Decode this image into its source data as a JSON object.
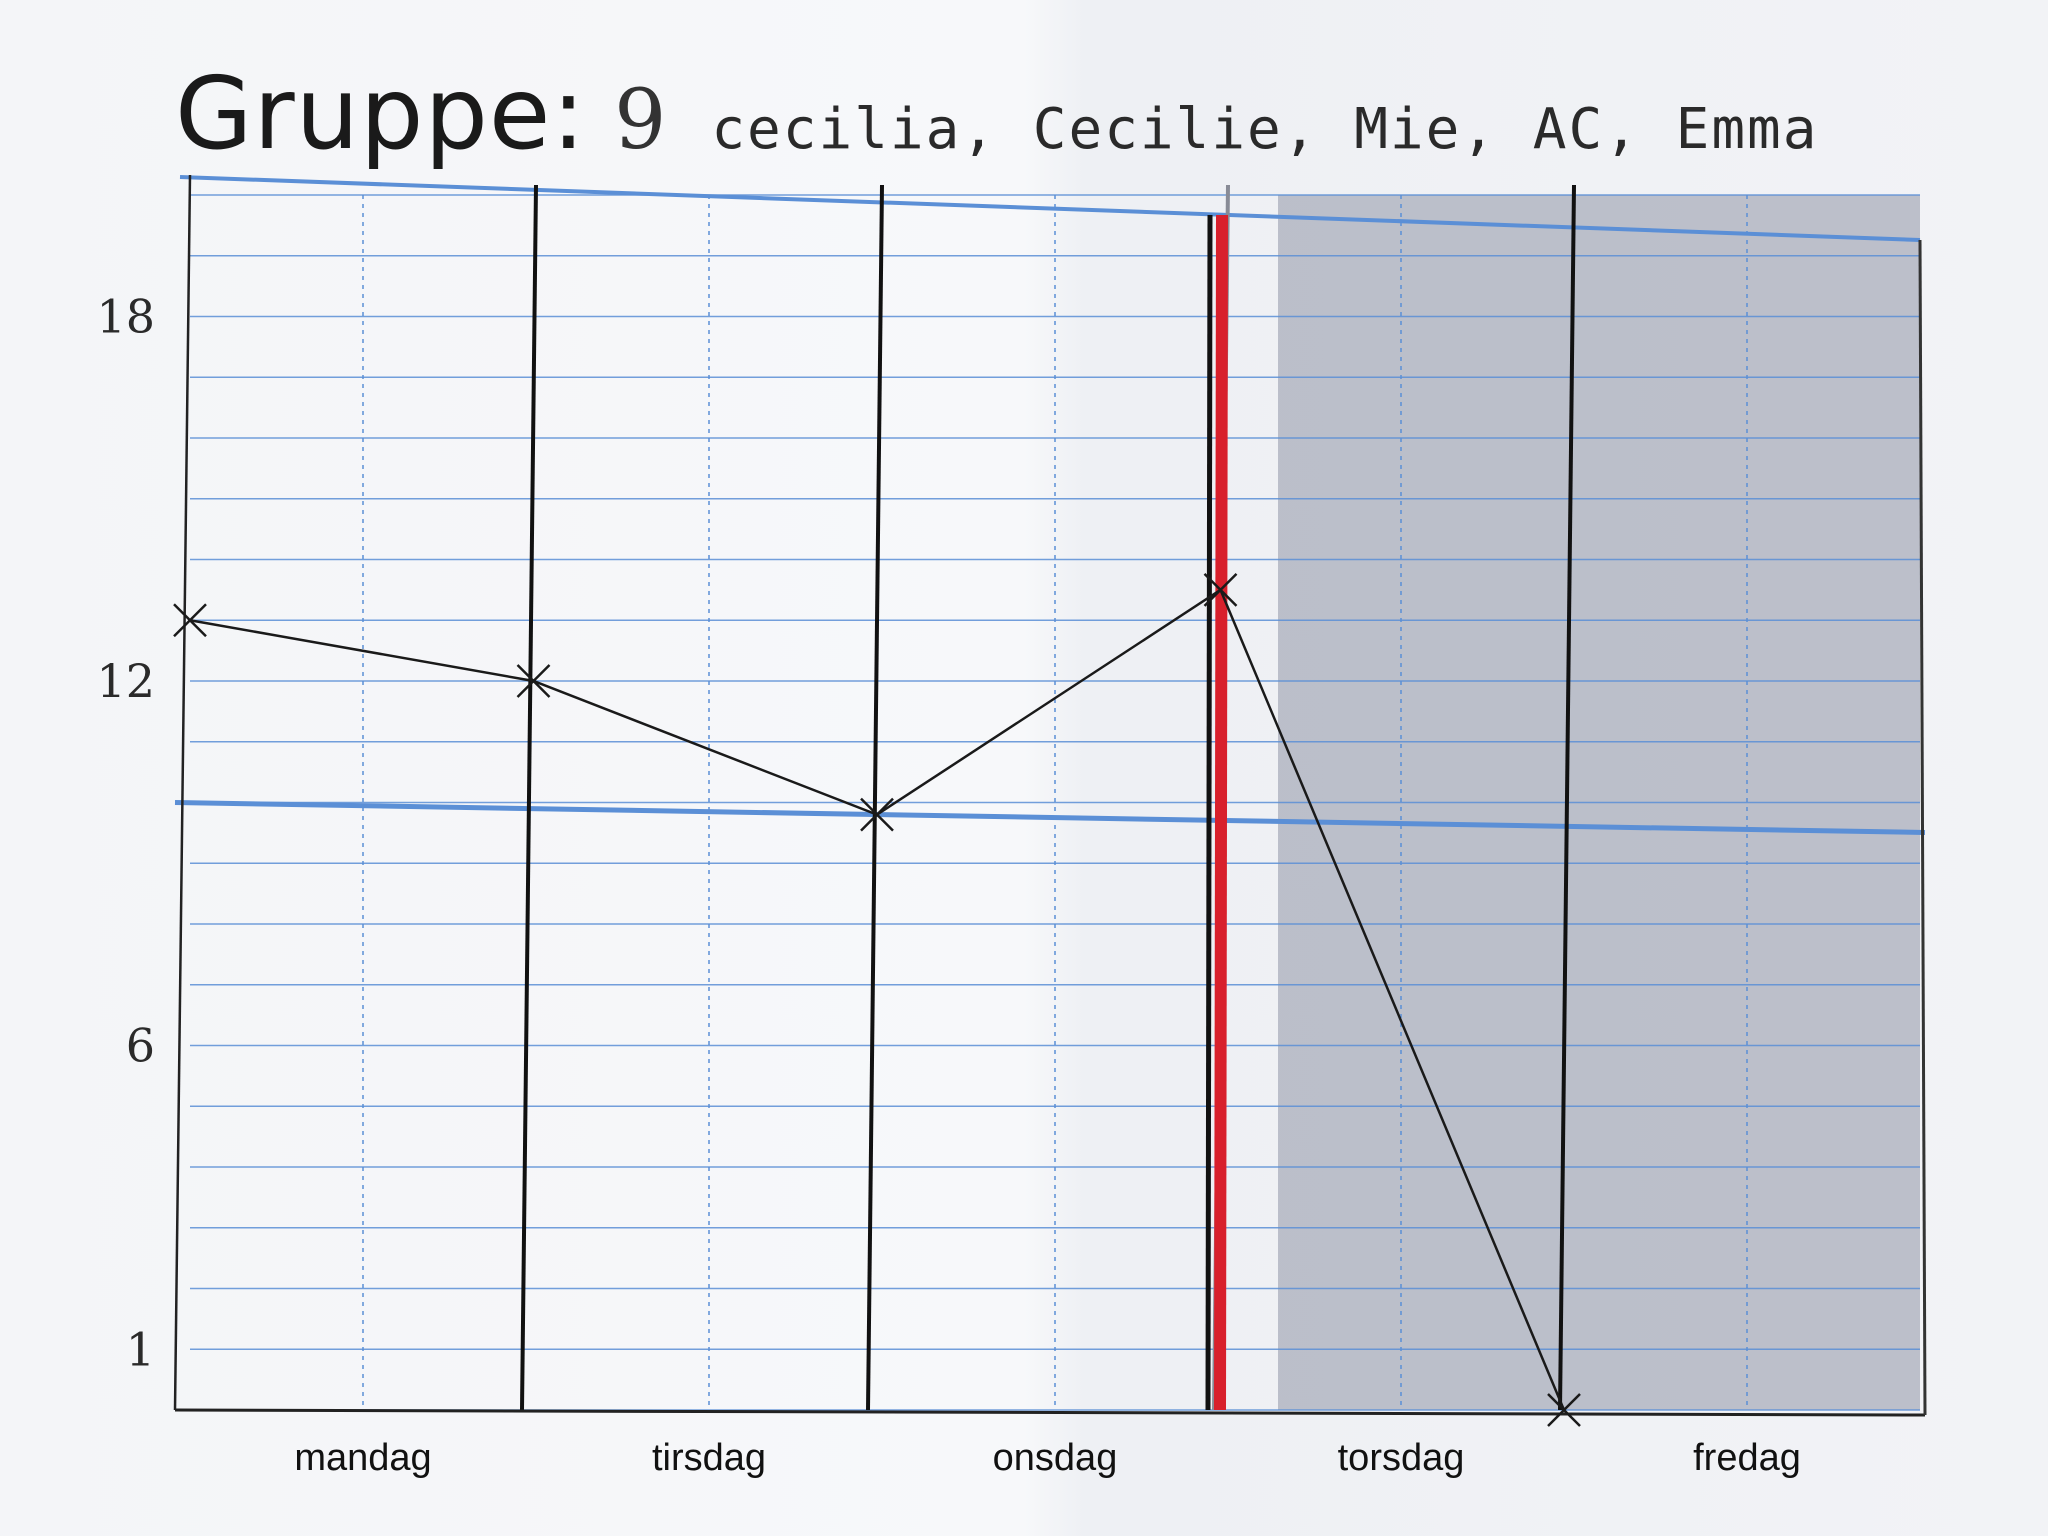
{
  "header": {
    "title_label": "Gruppe:",
    "group_number": "9",
    "members": "cecilia, Cecilie, Mie, AC, Emma"
  },
  "chart_data": {
    "type": "line",
    "title": "",
    "xlabel": "",
    "ylabel": "",
    "categories": [
      "mandag",
      "tirsdag",
      "onsdag",
      "torsdag",
      "fredag"
    ],
    "y_tick_labels": [
      "18",
      "12",
      "6",
      "1"
    ],
    "y_ticks": [
      18,
      12,
      6,
      1
    ],
    "ylim": [
      0,
      20
    ],
    "grid": true,
    "reference_line_y": 10,
    "marker": "x",
    "x_positions": [
      "mandag start",
      "tirsdag start",
      "onsdag start",
      "torsdag start",
      "fredag start"
    ],
    "series": [
      {
        "values": [
          13,
          12,
          9.8,
          13.5,
          0
        ]
      }
    ],
    "shaded_region": [
      "torsdag",
      "fredag"
    ],
    "highlight_line": "torsdag start",
    "colors": {
      "grid_line": "#5b8fd6",
      "day_separator": "#111111",
      "highlight": "#d8202c",
      "shade": "#a9adbb",
      "series": "#1a1a1a"
    }
  }
}
